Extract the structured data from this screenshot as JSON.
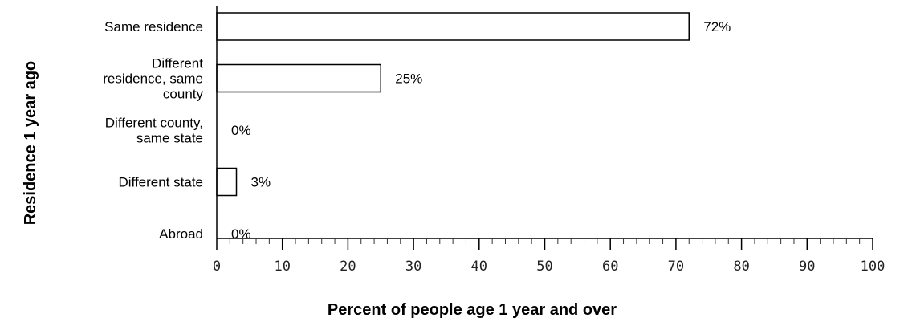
{
  "chart_data": {
    "type": "bar",
    "orientation": "horizontal",
    "categories": [
      [
        "Same residence"
      ],
      [
        "Different",
        "residence, same",
        "county"
      ],
      [
        "Different county,",
        "same state"
      ],
      [
        "Different state"
      ],
      [
        "Abroad"
      ]
    ],
    "values": [
      72,
      25,
      0,
      3,
      0
    ],
    "data_labels": [
      "72%",
      "25%",
      "0%",
      "3%",
      "0%"
    ],
    "xlabel": "Percent of people age 1 year and over",
    "ylabel": "Residence 1 year ago",
    "xlim": [
      0,
      100
    ],
    "x_ticks": [
      0,
      10,
      20,
      30,
      40,
      50,
      60,
      70,
      80,
      90,
      100
    ],
    "x_tick_labels": [
      "0",
      "10",
      "20",
      "30",
      "40",
      "50",
      "60",
      "70",
      "80",
      "90",
      "100"
    ],
    "grid": false,
    "legend": "none",
    "bar_fill": "#ffffff",
    "bar_stroke": "#000000"
  }
}
